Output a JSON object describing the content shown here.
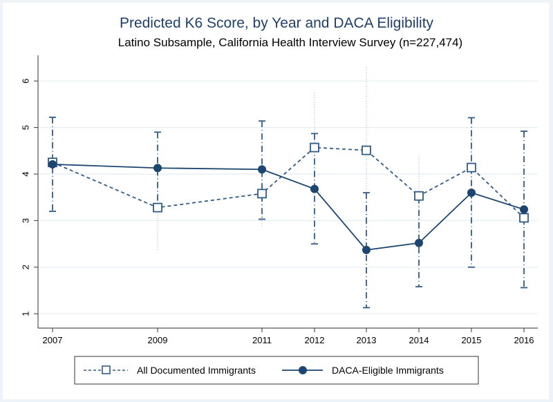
{
  "chart_data": {
    "type": "line",
    "title": "Predicted K6 Score, by Year and DACA Eligibility",
    "subtitle": "Latino Subsample, California Health Interview Survey (n=227,474)",
    "xlabel": "",
    "ylabel": "",
    "x": [
      2007,
      2009,
      2011,
      2012,
      2013,
      2014,
      2015,
      2016
    ],
    "x_tick_labels": [
      "2007",
      "2009",
      "2011",
      "2012",
      "2013",
      "2014",
      "2015",
      "2016"
    ],
    "y_ticks": [
      1,
      2,
      3,
      4,
      5,
      6
    ],
    "y_tick_labels": [
      "1",
      "2",
      "3",
      "4",
      "5",
      "6"
    ],
    "ylim": [
      0.7,
      6.5
    ],
    "grid": true,
    "legend_position": "bottom",
    "series": [
      {
        "name": "All Documented Immigrants",
        "line_style": "dashed",
        "marker": "hollow-square",
        "color": "#2f5b85",
        "values": [
          4.25,
          3.28,
          3.58,
          4.57,
          4.51,
          3.53,
          4.14,
          3.06
        ],
        "ci_low": [
          3.55,
          2.35,
          2.88,
          3.4,
          2.7,
          2.6,
          3.1,
          2.25
        ],
        "ci_high": [
          4.9,
          4.1,
          4.3,
          5.75,
          6.3,
          4.37,
          5.0,
          3.85
        ],
        "ci_style": "dotted"
      },
      {
        "name": "DACA-Eligible Immigrants",
        "line_style": "solid",
        "marker": "filled-circle",
        "color": "#1c4670",
        "values": [
          4.21,
          4.13,
          4.1,
          3.68,
          2.37,
          2.52,
          3.6,
          3.24
        ],
        "ci_low": [
          3.2,
          3.35,
          3.03,
          2.5,
          1.13,
          1.58,
          2.0,
          1.56
        ],
        "ci_high": [
          5.22,
          4.9,
          5.14,
          4.87,
          3.6,
          3.5,
          5.21,
          4.92
        ],
        "ci_style": "dash-dot-capped"
      }
    ]
  }
}
